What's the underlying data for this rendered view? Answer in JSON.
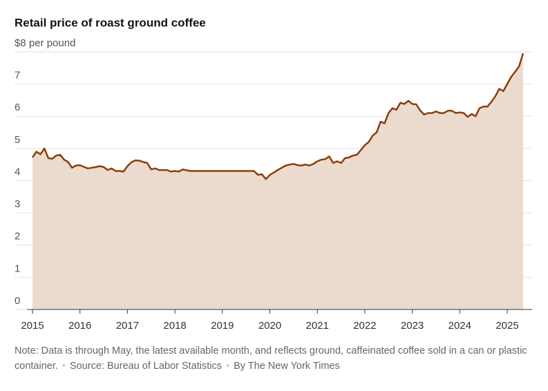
{
  "chart_data": {
    "type": "line",
    "title": "Retail price of roast ground coffee",
    "note": "Note: Data is through May, the latest available month, and reflects ground, caffeinated coffee sold in a can or plastic container.",
    "source": "Source: Bureau of Labor Statistics",
    "credit": "By The New York Times",
    "x": [
      "2015-01",
      "2015-02",
      "2015-03",
      "2015-04",
      "2015-05",
      "2015-06",
      "2015-07",
      "2015-08",
      "2015-09",
      "2015-10",
      "2015-11",
      "2015-12",
      "2016-01",
      "2016-02",
      "2016-03",
      "2016-04",
      "2016-05",
      "2016-06",
      "2016-07",
      "2016-08",
      "2016-09",
      "2016-10",
      "2016-11",
      "2016-12",
      "2017-01",
      "2017-02",
      "2017-03",
      "2017-04",
      "2017-05",
      "2017-06",
      "2017-07",
      "2017-08",
      "2017-09",
      "2017-10",
      "2017-11",
      "2017-12",
      "2018-01",
      "2018-02",
      "2018-03",
      "2018-04",
      "2018-05",
      "2018-06",
      "2018-07",
      "2018-08",
      "2018-09",
      "2018-10",
      "2018-11",
      "2018-12",
      "2019-01",
      "2019-02",
      "2019-03",
      "2019-04",
      "2019-05",
      "2019-06",
      "2019-07",
      "2019-08",
      "2019-09",
      "2019-10",
      "2019-11",
      "2019-12",
      "2020-01",
      "2020-02",
      "2020-03",
      "2020-04",
      "2020-05",
      "2020-06",
      "2020-07",
      "2020-08",
      "2020-09",
      "2020-10",
      "2020-11",
      "2020-12",
      "2021-01",
      "2021-02",
      "2021-03",
      "2021-04",
      "2021-05",
      "2021-06",
      "2021-07",
      "2021-08",
      "2021-09",
      "2021-10",
      "2021-11",
      "2021-12",
      "2022-01",
      "2022-02",
      "2022-03",
      "2022-04",
      "2022-05",
      "2022-06",
      "2022-07",
      "2022-08",
      "2022-09",
      "2022-10",
      "2022-11",
      "2022-12",
      "2023-01",
      "2023-02",
      "2023-03",
      "2023-04",
      "2023-05",
      "2023-06",
      "2023-07",
      "2023-08",
      "2023-09",
      "2023-10",
      "2023-11",
      "2023-12",
      "2024-01",
      "2024-02",
      "2024-03",
      "2024-04",
      "2024-05",
      "2024-06",
      "2024-07",
      "2024-08",
      "2024-09",
      "2024-10",
      "2024-11",
      "2024-12",
      "2025-01",
      "2025-02",
      "2025-03",
      "2025-04",
      "2025-05"
    ],
    "series": [
      {
        "name": "Roast ground coffee",
        "color": "#8b3d0b",
        "fill": "#e9d7c9",
        "values": [
          4.72,
          4.9,
          4.82,
          5.0,
          4.7,
          4.68,
          4.78,
          4.8,
          4.65,
          4.58,
          4.4,
          4.47,
          4.48,
          4.43,
          4.38,
          4.4,
          4.42,
          4.45,
          4.42,
          4.33,
          4.38,
          4.3,
          4.3,
          4.28,
          4.45,
          4.57,
          4.63,
          4.62,
          4.58,
          4.55,
          4.35,
          4.38,
          4.33,
          4.33,
          4.33,
          4.28,
          4.3,
          4.28,
          4.35,
          4.32,
          4.3,
          4.3,
          4.3,
          4.3,
          4.3,
          4.3,
          4.3,
          4.3,
          4.3,
          4.3,
          4.3,
          4.3,
          4.3,
          4.3,
          4.3,
          4.3,
          4.3,
          4.18,
          4.2,
          4.05,
          4.18,
          4.25,
          4.33,
          4.4,
          4.47,
          4.5,
          4.52,
          4.48,
          4.47,
          4.5,
          4.47,
          4.52,
          4.6,
          4.65,
          4.67,
          4.75,
          4.55,
          4.6,
          4.55,
          4.7,
          4.72,
          4.78,
          4.8,
          4.95,
          5.1,
          5.2,
          5.4,
          5.5,
          5.83,
          5.78,
          6.1,
          6.25,
          6.2,
          6.42,
          6.38,
          6.48,
          6.38,
          6.37,
          6.18,
          6.05,
          6.1,
          6.1,
          6.15,
          6.1,
          6.1,
          6.17,
          6.17,
          6.1,
          6.12,
          6.1,
          5.98,
          6.07,
          6.0,
          6.25,
          6.3,
          6.3,
          6.45,
          6.62,
          6.85,
          6.78,
          7.0,
          7.22,
          7.38,
          7.55,
          7.95
        ]
      }
    ],
    "ylim": [
      0,
      8
    ],
    "yticks": [
      0,
      1,
      2,
      3,
      4,
      5,
      6,
      7,
      {
        "value": 8,
        "label": "$8 per pound"
      }
    ],
    "xticks": [
      2015,
      2016,
      2017,
      2018,
      2019,
      2020,
      2021,
      2022,
      2023,
      2024,
      2025
    ],
    "grid": true
  }
}
